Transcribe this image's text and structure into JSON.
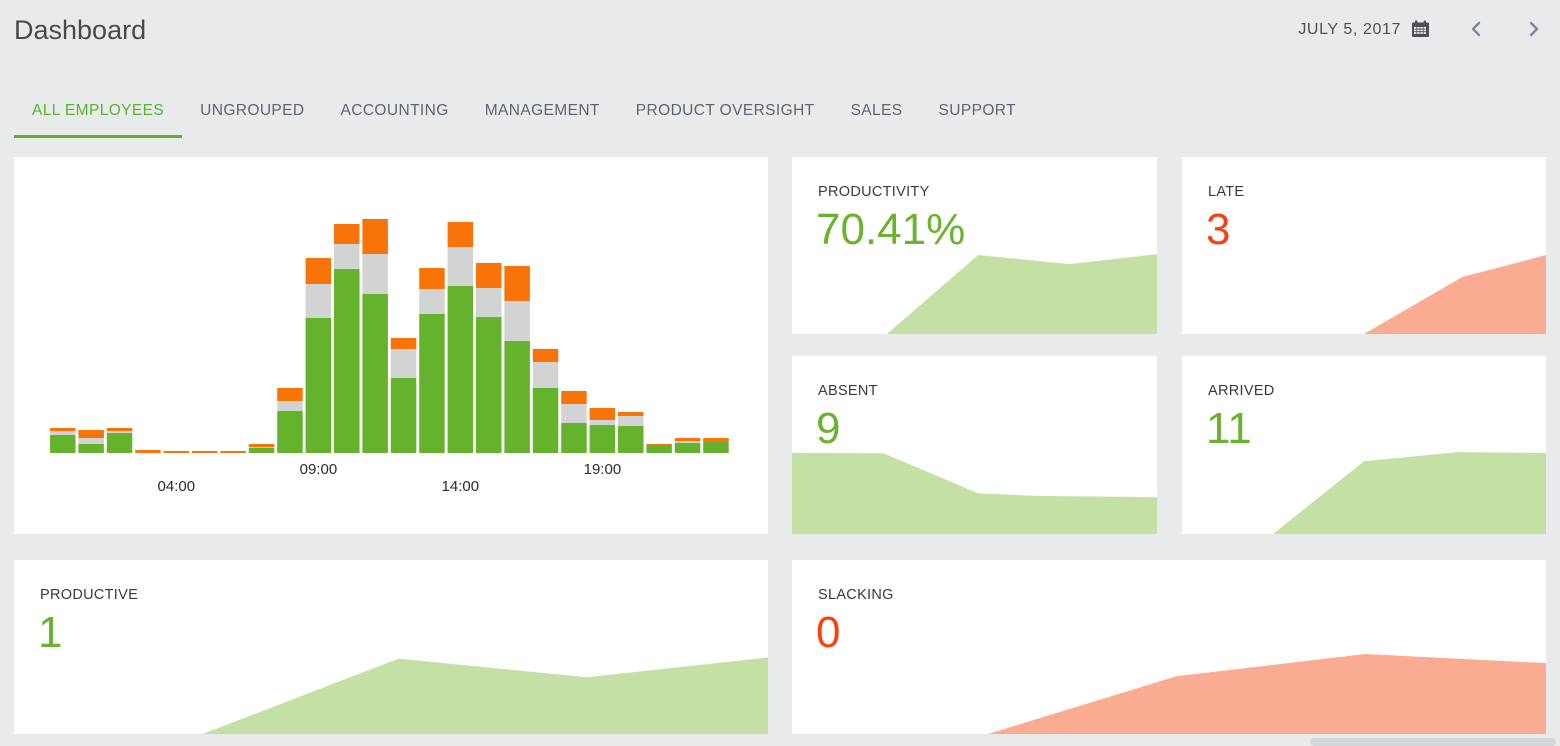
{
  "header": {
    "title": "Dashboard",
    "date": "JULY 5, 2017"
  },
  "tabs": [
    {
      "label": "ALL EMPLOYEES",
      "active": true
    },
    {
      "label": "UNGROUPED",
      "active": false
    },
    {
      "label": "ACCOUNTING",
      "active": false
    },
    {
      "label": "MANAGEMENT",
      "active": false
    },
    {
      "label": "PRODUCT OVERSIGHT",
      "active": false
    },
    {
      "label": "SALES",
      "active": false
    },
    {
      "label": "SUPPORT",
      "active": false
    }
  ],
  "cards": {
    "productivity": {
      "label": "PRODUCTIVITY",
      "value": "70.41%",
      "value_color": "#6ab22f"
    },
    "late": {
      "label": "LATE",
      "value": "3",
      "value_color": "#f64111"
    },
    "absent": {
      "label": "ABSENT",
      "value": "9",
      "value_color": "#6ab22f"
    },
    "arrived": {
      "label": "ARRIVED",
      "value": "11",
      "value_color": "#6ab22f"
    },
    "productive": {
      "label": "PRODUCTIVE",
      "value": "1",
      "value_color": "#6ab22f"
    },
    "slacking": {
      "label": "SLACKING",
      "value": "0",
      "value_color": "#f64111"
    }
  },
  "icons": {
    "calendar": "calendar-icon",
    "prev": "chevron-left-icon",
    "next": "chevron-right-icon"
  },
  "colors": {
    "background": "#e8eaec",
    "card": "#ffffff",
    "accent_green": "#5cb32d",
    "number_green": "#6ab22f",
    "number_red": "#f64111",
    "bar_green": "#65b22c",
    "bar_gray": "#d2d4d4",
    "bar_orange": "#f87408",
    "area_green": "#c5e0a4",
    "area_salmon": "#f9ac92",
    "tab_inactive": "#5c6670",
    "title_text": "#4a4a4a"
  },
  "chart_data": [
    {
      "id": "hourly-activity",
      "type": "bar",
      "stacked": true,
      "title": "",
      "xlabel": "",
      "ylabel": "",
      "grid": false,
      "legend": "none",
      "units": "relative-px",
      "ylim": [
        0,
        240
      ],
      "categories": [
        "00:00",
        "01:00",
        "02:00",
        "03:00",
        "04:00",
        "05:00",
        "06:00",
        "07:00",
        "08:00",
        "09:00",
        "10:00",
        "11:00",
        "12:00",
        "13:00",
        "14:00",
        "15:00",
        "16:00",
        "17:00",
        "18:00",
        "19:00",
        "20:00",
        "21:00",
        "22:00",
        "23:00"
      ],
      "visible_ticks": [
        {
          "index": 4,
          "label": "04:00",
          "row": "low"
        },
        {
          "index": 9,
          "label": "09:00",
          "row": "high"
        },
        {
          "index": 14,
          "label": "14:00",
          "row": "low"
        },
        {
          "index": 19,
          "label": "19:00",
          "row": "high"
        }
      ],
      "series": [
        {
          "name": "productive",
          "color": "#65b22c",
          "values": [
            18,
            9,
            20,
            0,
            0,
            0,
            0,
            5,
            42,
            135,
            184,
            159,
            75,
            139,
            167,
            136,
            112,
            65,
            30,
            28,
            27,
            7,
            10,
            11
          ]
        },
        {
          "name": "idle",
          "color": "#d2d4d4",
          "values": [
            4,
            6,
            2,
            0,
            0,
            0,
            0,
            1,
            10,
            34,
            25,
            40,
            29,
            25,
            39,
            29,
            40,
            26,
            19,
            5,
            10,
            0,
            2,
            0
          ]
        },
        {
          "name": "slacking",
          "color": "#f87408",
          "values": [
            3,
            8,
            3,
            3,
            2,
            2,
            2,
            3,
            13,
            26,
            20,
            35,
            11,
            21,
            25,
            25,
            35,
            13,
            13,
            12,
            4,
            2,
            3,
            4
          ]
        }
      ]
    },
    {
      "id": "productivity",
      "type": "area",
      "color": "#c5e0a4",
      "points": {
        "x": [
          0,
          26,
          51,
          76,
          100
        ],
        "v": [
          0,
          0,
          44.6,
          39.5,
          45.1
        ]
      }
    },
    {
      "id": "late",
      "type": "area",
      "color": "#f9ac92",
      "points": {
        "x": [
          0,
          50,
          67,
          77,
          100
        ],
        "v": [
          0,
          0,
          20.3,
          32.2,
          44.6
        ]
      }
    },
    {
      "id": "absent",
      "type": "area",
      "color": "#c5e0a4",
      "points": {
        "x": [
          0,
          25,
          51,
          67,
          100
        ],
        "v": [
          45.5,
          45.4,
          22.9,
          21.4,
          20.7
        ]
      }
    },
    {
      "id": "arrived",
      "type": "area",
      "color": "#c5e0a4",
      "points": {
        "x": [
          0,
          25,
          50,
          76,
          100
        ],
        "v": [
          0,
          0,
          40.9,
          46,
          45.5
        ]
      }
    },
    {
      "id": "productive",
      "type": "area",
      "color": "#c5e0a4",
      "points": {
        "x": [
          0,
          25,
          51,
          76,
          100
        ],
        "v": [
          0,
          0,
          43.3,
          32.6,
          44
        ]
      }
    },
    {
      "id": "slacking",
      "type": "area",
      "color": "#f9ac92",
      "points": {
        "x": [
          0,
          26,
          51,
          76,
          100
        ],
        "v": [
          0,
          0,
          33.2,
          46,
          40.7
        ]
      }
    }
  ]
}
